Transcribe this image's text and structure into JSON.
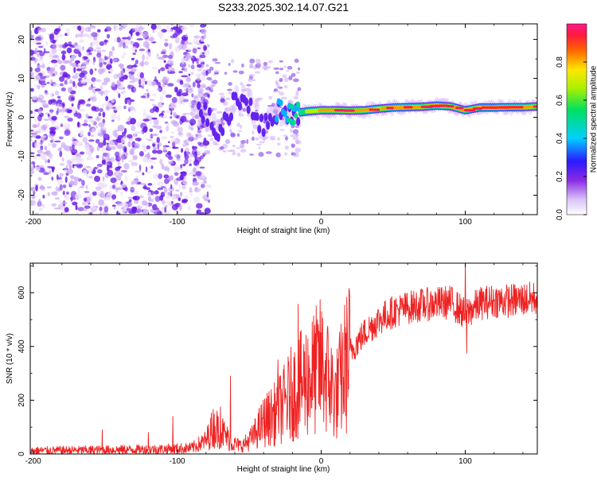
{
  "title": "S233.2025.302.14.07.G21",
  "colors": {
    "snr_line": "#ee2222",
    "ridge_core": "#ff1a4b",
    "scatter": "#6a1ae6",
    "scatter_light": "#c9a4f5",
    "axis": "#000000"
  },
  "chart_data": [
    {
      "type": "heatmap",
      "title": "S233.2025.302.14.07.G21",
      "xlabel": "Height of straight line (km)",
      "ylabel": "Frequency (Hz)",
      "xlim": [
        -202,
        150
      ],
      "ylim": [
        -25,
        24
      ],
      "xticks": [
        -200,
        -100,
        0,
        100
      ],
      "xtick_labels": [
        "-200",
        "-100",
        "0",
        "100"
      ],
      "yticks": [
        -20,
        -10,
        0,
        10,
        20
      ],
      "ytick_labels": [
        "-20",
        "-10",
        "0",
        "10",
        "20"
      ],
      "colorbar": {
        "label": "Normalized spectral amplitude",
        "range": [
          0,
          1
        ],
        "ticks": [
          0,
          0.2,
          0.4,
          0.6,
          0.8
        ],
        "tick_labels": [
          "0.0",
          "0.2",
          "0.4",
          "0.6",
          "0.8"
        ],
        "colormap": "rainbow (white → purple → blue → cyan → green → yellow → red → magenta)"
      },
      "noise_region_x": [
        -202,
        -90
      ],
      "ridge": {
        "x": [
          -90,
          -80,
          -70,
          -60,
          -50,
          -40,
          -30,
          -20,
          -10,
          0,
          10,
          20,
          30,
          40,
          50,
          60,
          70,
          80,
          90,
          100,
          110,
          120,
          130,
          140,
          150
        ],
        "frequency_hz": [
          3,
          1,
          -5,
          5,
          4,
          -3,
          2,
          1,
          1.5,
          1.8,
          1.8,
          1.7,
          1.8,
          2.2,
          2.5,
          2.6,
          2.7,
          3,
          2.8,
          1.8,
          2.5,
          2.5,
          2.6,
          2.6,
          2.8
        ],
        "amplitude": [
          0.2,
          0.25,
          0.3,
          0.3,
          0.35,
          0.3,
          0.4,
          0.55,
          0.7,
          0.85,
          0.85,
          0.9,
          0.85,
          0.8,
          0.9,
          0.9,
          0.9,
          0.95,
          0.9,
          0.85,
          0.9,
          0.95,
          0.95,
          0.9,
          0.9
        ]
      }
    },
    {
      "type": "line",
      "xlabel": "Height of straight line (km)",
      "ylabel": "SNR (10 * v/v)",
      "xlim": [
        -202,
        150
      ],
      "ylim": [
        0,
        710
      ],
      "xticks": [
        -200,
        -100,
        0,
        100
      ],
      "xtick_labels": [
        "-200",
        "-100",
        "0",
        "100"
      ],
      "yticks": [
        0,
        200,
        400,
        600
      ],
      "ytick_labels": [
        "0",
        "200",
        "400",
        "600"
      ],
      "series": [
        {
          "name": "SNR",
          "trend_x": [
            -202,
            -150,
            -110,
            -90,
            -80,
            -75,
            -70,
            -62,
            -55,
            -48,
            -40,
            -32,
            -25,
            -20,
            -15,
            -10,
            -5,
            0,
            5,
            10,
            15,
            20,
            30,
            40,
            50,
            60,
            70,
            80,
            90,
            100,
            110,
            120,
            130,
            140,
            150
          ],
          "trend_y": [
            12,
            15,
            18,
            22,
            50,
            100,
            90,
            40,
            30,
            60,
            120,
            150,
            190,
            230,
            250,
            280,
            300,
            330,
            280,
            210,
            300,
            380,
            450,
            500,
            530,
            545,
            555,
            560,
            565,
            520,
            560,
            570,
            570,
            575,
            580
          ],
          "spikes": [
            {
              "x": -152,
              "y": 90
            },
            {
              "x": -120,
              "y": 80
            },
            {
              "x": -103,
              "y": 140
            },
            {
              "x": -70,
              "y": 175
            },
            {
              "x": -63,
              "y": 290
            },
            {
              "x": -30,
              "y": 350
            },
            {
              "x": -16,
              "y": 557
            },
            {
              "x": 100,
              "y": 715
            },
            {
              "x": 101,
              "y": 375
            }
          ]
        }
      ]
    }
  ]
}
